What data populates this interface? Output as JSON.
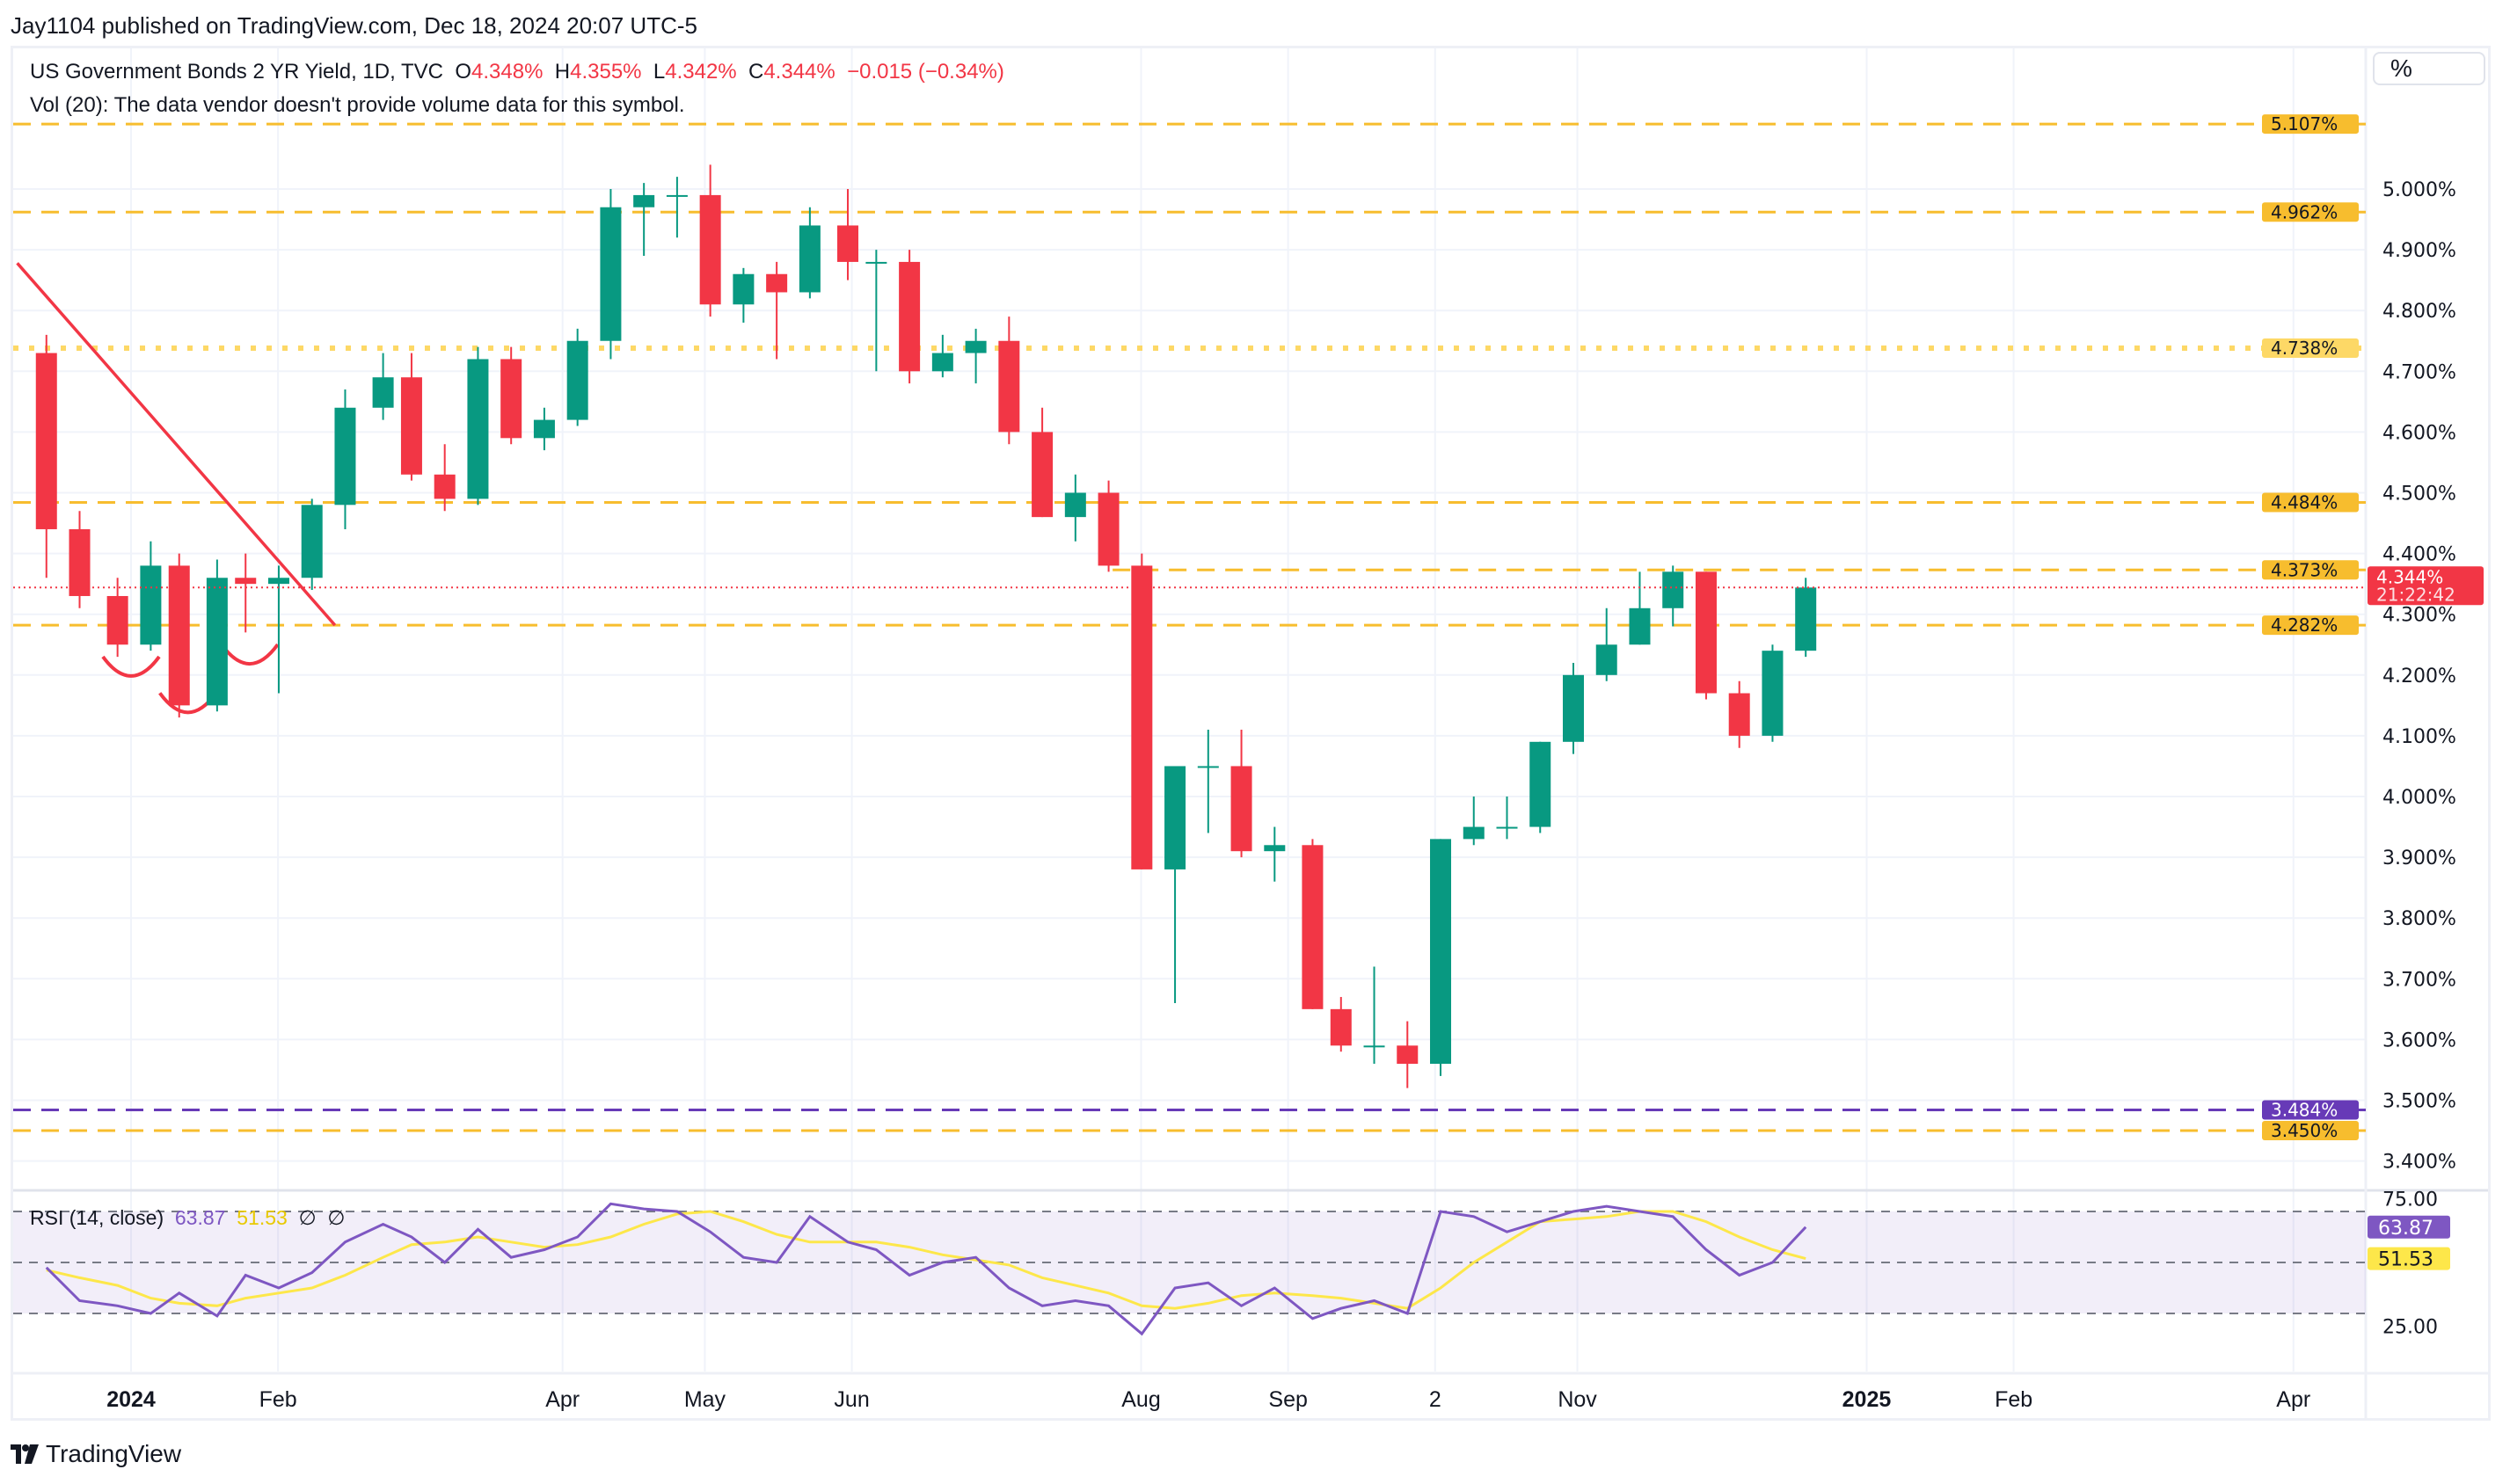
{
  "header": {
    "published": "Jay1104 published on TradingView.com, Dec 18, 2024 20:07 UTC-5"
  },
  "legend": {
    "symbol": "US Government Bonds 2 YR Yield, 1D, TVC",
    "o_label": "O",
    "o_value": "4.348%",
    "h_label": "H",
    "h_value": "4.355%",
    "l_label": "L",
    "l_value": "4.342%",
    "c_label": "C",
    "c_value": "4.344%",
    "change": "−0.015 (−0.34%)",
    "vol_note": "Vol (20): The data vendor doesn't provide volume data for this symbol."
  },
  "scale_button": "%",
  "rsi_legend": {
    "label": "RSI (14, close)",
    "rsi": "63.87",
    "ma": "51.53",
    "x1": "∅",
    "x2": "∅"
  },
  "logo": {
    "text": "TradingView"
  },
  "colors": {
    "up": "#089981",
    "down": "#f23645",
    "level": "#f7bd2e",
    "level_dotted": "#fdd866",
    "support_purple": "#673ab7",
    "rsi": "#7e57c2",
    "rsi_ma": "#fde74a",
    "trendline": "#f23645"
  },
  "chart_data": {
    "type": "candlestick",
    "interval_shown": "1D",
    "price_axis": {
      "ticks": [
        "5.000%",
        "4.900%",
        "4.800%",
        "4.700%",
        "4.600%",
        "4.500%",
        "4.400%",
        "4.300%",
        "4.200%",
        "4.100%",
        "4.000%",
        "3.900%",
        "3.800%",
        "3.700%",
        "3.600%",
        "3.500%",
        "3.400%"
      ],
      "range": [
        3.38,
        5.15
      ]
    },
    "time_axis": {
      "ticks": [
        {
          "label": "2024",
          "date": "2024-01-01",
          "bold": true
        },
        {
          "label": "Feb",
          "date": "2024-02-01"
        },
        {
          "label": "Apr",
          "date": "2024-04-01"
        },
        {
          "label": "May",
          "date": "2024-05-01"
        },
        {
          "label": "Jun",
          "date": "2024-06-01"
        },
        {
          "label": "Aug",
          "date": "2024-08-01"
        },
        {
          "label": "Sep",
          "date": "2024-09-01"
        },
        {
          "label": "2",
          "date": "2024-10-02"
        },
        {
          "label": "Nov",
          "date": "2024-11-01"
        },
        {
          "label": "2025",
          "date": "2025-01-01",
          "bold": true
        },
        {
          "label": "Feb",
          "date": "2025-02-01"
        },
        {
          "label": "Apr",
          "date": "2025-04-01"
        }
      ]
    },
    "candles": [
      [
        "2023-12-11",
        4.73,
        4.76,
        4.36,
        4.44
      ],
      [
        "2023-12-18",
        4.44,
        4.47,
        4.31,
        4.33
      ],
      [
        "2023-12-26",
        4.33,
        4.36,
        4.23,
        4.25
      ],
      [
        "2024-01-02",
        4.25,
        4.42,
        4.24,
        4.38
      ],
      [
        "2024-01-08",
        4.38,
        4.4,
        4.13,
        4.15
      ],
      [
        "2024-01-16",
        4.15,
        4.39,
        4.14,
        4.36
      ],
      [
        "2024-01-22",
        4.36,
        4.4,
        4.27,
        4.35
      ],
      [
        "2024-01-29",
        4.35,
        4.38,
        4.17,
        4.36
      ],
      [
        "2024-02-05",
        4.36,
        4.49,
        4.34,
        4.48
      ],
      [
        "2024-02-12",
        4.48,
        4.67,
        4.44,
        4.64
      ],
      [
        "2024-02-20",
        4.64,
        4.73,
        4.62,
        4.69
      ],
      [
        "2024-02-26",
        4.69,
        4.73,
        4.52,
        4.53
      ],
      [
        "2024-03-04",
        4.53,
        4.58,
        4.47,
        4.49
      ],
      [
        "2024-03-11",
        4.49,
        4.74,
        4.48,
        4.72
      ],
      [
        "2024-03-18",
        4.72,
        4.74,
        4.58,
        4.59
      ],
      [
        "2024-03-25",
        4.59,
        4.64,
        4.57,
        4.62
      ],
      [
        "2024-04-01",
        4.62,
        4.77,
        4.61,
        4.75
      ],
      [
        "2024-04-08",
        4.75,
        5.0,
        4.72,
        4.97
      ],
      [
        "2024-04-15",
        4.97,
        5.01,
        4.89,
        4.99
      ],
      [
        "2024-04-22",
        4.99,
        5.02,
        4.92,
        4.99
      ],
      [
        "2024-04-29",
        4.99,
        5.04,
        4.79,
        4.81
      ],
      [
        "2024-05-06",
        4.81,
        4.87,
        4.78,
        4.86
      ],
      [
        "2024-05-13",
        4.86,
        4.88,
        4.72,
        4.83
      ],
      [
        "2024-05-20",
        4.83,
        4.97,
        4.82,
        4.94
      ],
      [
        "2024-05-28",
        4.94,
        5.0,
        4.85,
        4.88
      ],
      [
        "2024-06-03",
        4.88,
        4.9,
        4.7,
        4.88
      ],
      [
        "2024-06-10",
        4.88,
        4.9,
        4.68,
        4.7
      ],
      [
        "2024-06-17",
        4.7,
        4.76,
        4.69,
        4.73
      ],
      [
        "2024-06-24",
        4.73,
        4.77,
        4.68,
        4.75
      ],
      [
        "2024-07-01",
        4.75,
        4.79,
        4.58,
        4.6
      ],
      [
        "2024-07-08",
        4.6,
        4.64,
        4.46,
        4.46
      ],
      [
        "2024-07-15",
        4.46,
        4.53,
        4.42,
        4.5
      ],
      [
        "2024-07-22",
        4.5,
        4.52,
        4.37,
        4.38
      ],
      [
        "2024-07-29",
        4.38,
        4.4,
        3.88,
        3.88
      ],
      [
        "2024-08-05",
        3.88,
        4.05,
        3.66,
        4.05
      ],
      [
        "2024-08-12",
        4.05,
        4.11,
        3.94,
        4.05
      ],
      [
        "2024-08-19",
        4.05,
        4.11,
        3.9,
        3.91
      ],
      [
        "2024-08-26",
        3.91,
        3.95,
        3.86,
        3.92
      ],
      [
        "2024-09-03",
        3.92,
        3.93,
        3.65,
        3.65
      ],
      [
        "2024-09-09",
        3.65,
        3.67,
        3.58,
        3.59
      ],
      [
        "2024-09-16",
        3.59,
        3.72,
        3.56,
        3.59
      ],
      [
        "2024-09-23",
        3.59,
        3.63,
        3.52,
        3.56
      ],
      [
        "2024-09-30",
        3.56,
        3.93,
        3.54,
        3.93
      ],
      [
        "2024-10-07",
        3.93,
        4.0,
        3.92,
        3.95
      ],
      [
        "2024-10-14",
        3.95,
        4.0,
        3.93,
        3.95
      ],
      [
        "2024-10-21",
        3.95,
        4.09,
        3.94,
        4.09
      ],
      [
        "2024-10-28",
        4.09,
        4.22,
        4.07,
        4.2
      ],
      [
        "2024-11-04",
        4.2,
        4.31,
        4.19,
        4.25
      ],
      [
        "2024-11-11",
        4.25,
        4.37,
        4.25,
        4.31
      ],
      [
        "2024-11-18",
        4.31,
        4.38,
        4.28,
        4.37
      ],
      [
        "2024-11-25",
        4.37,
        4.37,
        4.16,
        4.17
      ],
      [
        "2024-12-02",
        4.17,
        4.19,
        4.08,
        4.1
      ],
      [
        "2024-12-09",
        4.1,
        4.25,
        4.09,
        4.24
      ],
      [
        "2024-12-16",
        4.24,
        4.36,
        4.23,
        4.344
      ]
    ],
    "candle_fields": [
      "date",
      "open",
      "high",
      "low",
      "close"
    ],
    "last_price": {
      "value": 4.344,
      "label": "4.344%",
      "countdown": "21:22:42"
    },
    "levels": [
      {
        "value": 5.107,
        "label": "5.107%",
        "style": "dashed",
        "color": "#f7bd2e"
      },
      {
        "value": 4.962,
        "label": "4.962%",
        "style": "dashed",
        "color": "#f7bd2e"
      },
      {
        "value": 4.738,
        "label": "4.738%",
        "style": "dotted",
        "color": "#fdd866"
      },
      {
        "value": 4.484,
        "label": "4.484%",
        "style": "dashed",
        "color": "#f7bd2e"
      },
      {
        "value": 4.373,
        "label": "4.373%",
        "style": "dashed",
        "color": "#f7bd2e",
        "from": "2024-07-26"
      },
      {
        "value": 4.282,
        "label": "4.282%",
        "style": "dashed",
        "color": "#f7bd2e"
      },
      {
        "value": 3.484,
        "label": "3.484%",
        "style": "dashed",
        "color": "#673ab7"
      },
      {
        "value": 3.45,
        "label": "3.450%",
        "style": "dashed",
        "color": "#f7bd2e"
      }
    ],
    "trendline": {
      "from": [
        "2023-12-08",
        4.878
      ],
      "to": [
        "2024-02-13",
        4.282
      ],
      "color": "#f23645"
    },
    "arcs": [
      {
        "date": "2024-01-01",
        "price": 4.21
      },
      {
        "date": "2024-01-13",
        "price": 4.15
      },
      {
        "date": "2024-01-26",
        "price": 4.23
      }
    ],
    "rsi": {
      "ticks": [
        "75.00",
        "25.00"
      ],
      "bands": [
        70,
        50,
        30
      ],
      "range": [
        20,
        78
      ],
      "values": [
        48,
        35,
        33,
        30,
        38,
        29,
        45,
        40,
        46,
        58,
        65,
        60,
        50,
        63,
        52,
        55,
        60,
        73,
        71,
        70,
        62,
        52,
        50,
        68,
        58,
        55,
        45,
        50,
        52,
        40,
        33,
        35,
        33,
        22,
        40,
        42,
        33,
        40,
        28,
        32,
        35,
        30,
        70,
        68,
        62,
        66,
        70,
        72,
        70,
        68,
        55,
        45,
        50,
        63.87
      ],
      "ma_values": [
        47,
        44,
        41,
        36,
        34,
        33,
        36,
        38,
        40,
        45,
        52,
        57,
        58,
        60,
        58,
        56,
        57,
        60,
        65,
        69,
        70,
        66,
        61,
        58,
        58,
        58,
        56,
        53,
        51,
        49,
        44,
        41,
        38,
        33,
        32,
        34,
        37,
        38,
        37,
        36,
        34,
        32,
        40,
        50,
        58,
        66,
        67,
        68,
        70,
        70,
        66,
        60,
        55,
        51.53
      ],
      "rsi_label": "63.87",
      "ma_label": "51.53"
    }
  }
}
